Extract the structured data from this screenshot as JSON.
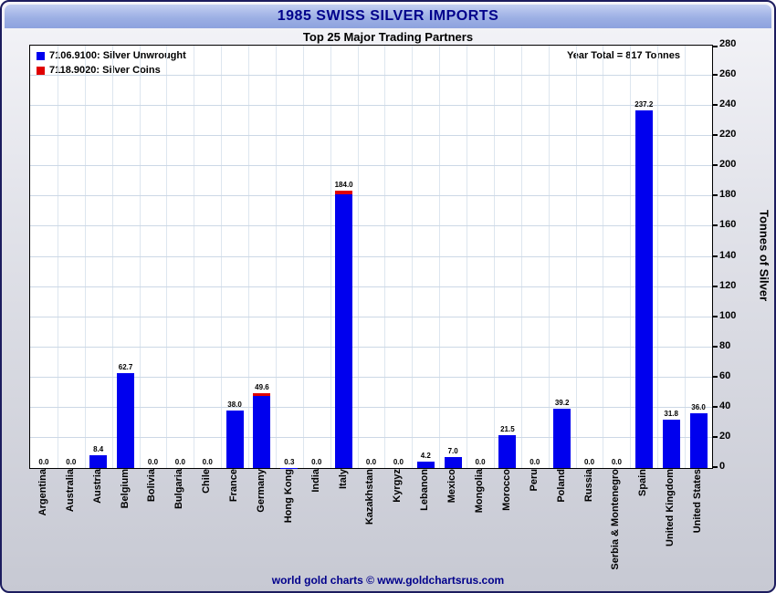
{
  "footer": {
    "text": "world gold charts © www.goldchartsrus.com"
  },
  "chart_data": {
    "type": "bar",
    "title": "1985 SWISS SILVER IMPORTS",
    "subtitle": "Top 25 Major Trading Partners",
    "annotation": "Year Total = 817 Tonnes",
    "ylabel": "Tonnes of Silver",
    "ylim": [
      0,
      280
    ],
    "yticks": [
      0,
      20,
      40,
      60,
      80,
      100,
      120,
      140,
      160,
      180,
      200,
      220,
      240,
      260,
      280
    ],
    "grid": "on",
    "legend_position": "upper-left",
    "legend": [
      {
        "label": "7106.9100: Silver Unwrought",
        "color": "#0000ee"
      },
      {
        "label": "7118.9020: Silver Coins",
        "color": "#e00000"
      }
    ],
    "categories": [
      "Argentina",
      "Australia",
      "Austria",
      "Belgium",
      "Bolivia",
      "Bulgaria",
      "Chile",
      "France",
      "Germany",
      "Hong Kong",
      "India",
      "Italy",
      "Kazakhstan",
      "Kyrgyz",
      "Lebanon",
      "Mexico",
      "Mongolia",
      "Morocco",
      "Peru",
      "Poland",
      "Russia",
      "Serbia & Montenegro",
      "Spain",
      "United Kingdom",
      "United States"
    ],
    "series": [
      {
        "name": "7106.9100: Silver Unwrought",
        "values": [
          0.0,
          0.0,
          8.4,
          62.7,
          0.0,
          0.0,
          0.0,
          38.0,
          47.6,
          0.3,
          0.0,
          181.5,
          0.0,
          0.0,
          4.2,
          7.0,
          0.0,
          21.5,
          0.0,
          39.2,
          0.0,
          0.0,
          237.2,
          31.8,
          36.0
        ]
      },
      {
        "name": "7118.9020: Silver Coins",
        "values": [
          0.0,
          0.0,
          0.0,
          0.0,
          0.0,
          0.0,
          0.0,
          0.0,
          2.0,
          0.0,
          0.0,
          2.5,
          0.0,
          0.0,
          0.0,
          0.0,
          0.0,
          0.0,
          0.0,
          0.0,
          0.0,
          0.0,
          0.0,
          0.0,
          0.0
        ]
      }
    ],
    "totals_labels": [
      "0.0",
      "0.0",
      "8.4",
      "62.7",
      "0.0",
      "0.0",
      "0.0",
      "38.0",
      "49.6",
      "0.3",
      "0.0",
      "184.0",
      "0.0",
      "0.0",
      "4.2",
      "7.0",
      "0.0",
      "21.5",
      "0.0",
      "39.2",
      "0.0",
      "0.0",
      "237.2",
      "31.8",
      "36.0"
    ]
  }
}
